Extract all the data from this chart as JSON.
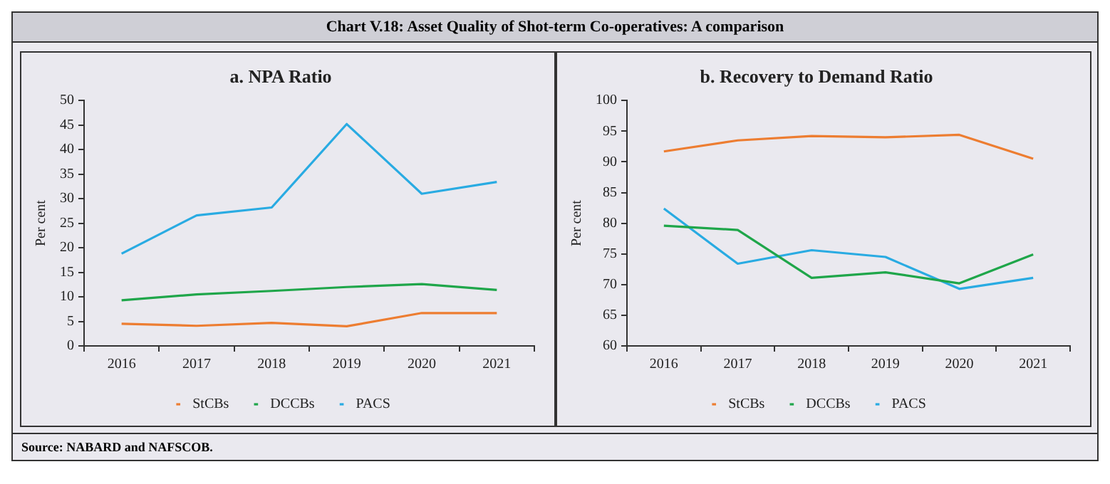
{
  "chart_data": [
    {
      "type": "other",
      "title": "Chart V.18: Asset Quality of Shot-term Co-operatives: A comparison",
      "annotations": [
        "Source: NABARD and NAFSCOB."
      ]
    },
    {
      "type": "line",
      "title": "a. NPA Ratio",
      "ylabel": "Per cent",
      "categories": [
        "2016",
        "2017",
        "2018",
        "2019",
        "2020",
        "2021"
      ],
      "ylim": [
        0,
        50
      ],
      "yticks": [
        0,
        5,
        10,
        15,
        20,
        25,
        30,
        35,
        40,
        45,
        50
      ],
      "grid": false,
      "legend": "bottom",
      "marker": "none",
      "series": [
        {
          "name": "StCBs",
          "color": "#ed7d31",
          "values": [
            4.5,
            4.1,
            4.7,
            4.0,
            6.7,
            6.7
          ]
        },
        {
          "name": "DCCBs",
          "color": "#1fa64a",
          "values": [
            9.3,
            10.5,
            11.2,
            12.0,
            12.6,
            11.4
          ]
        },
        {
          "name": "PACS",
          "color": "#29abe2",
          "values": [
            18.8,
            26.6,
            28.2,
            45.2,
            31.0,
            33.4
          ]
        }
      ]
    },
    {
      "type": "line",
      "title": "b. Recovery to Demand Ratio",
      "ylabel": "Per cent",
      "categories": [
        "2016",
        "2017",
        "2018",
        "2019",
        "2020",
        "2021"
      ],
      "ylim": [
        60,
        100
      ],
      "yticks": [
        60,
        65,
        70,
        75,
        80,
        85,
        90,
        95,
        100
      ],
      "grid": false,
      "legend": "bottom",
      "marker": "none",
      "series": [
        {
          "name": "StCBs",
          "color": "#ed7d31",
          "values": [
            91.7,
            93.5,
            94.2,
            94.0,
            94.4,
            90.5
          ]
        },
        {
          "name": "DCCBs",
          "color": "#1fa64a",
          "values": [
            79.6,
            78.9,
            71.1,
            72.0,
            70.2,
            74.9
          ]
        },
        {
          "name": "PACS",
          "color": "#29abe2",
          "values": [
            82.4,
            73.4,
            75.6,
            74.5,
            69.3,
            71.1
          ]
        }
      ]
    }
  ]
}
